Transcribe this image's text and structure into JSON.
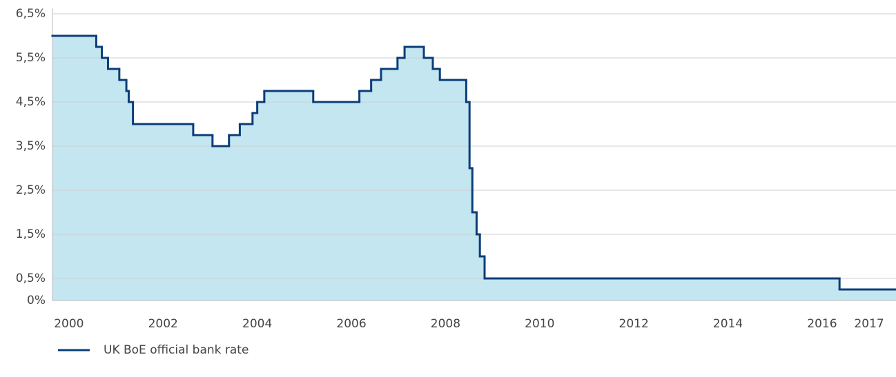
{
  "chart_data": {
    "type": "step-area",
    "x": [
      1999.65,
      2000.58,
      2000.7,
      2000.83,
      2001.07,
      2001.22,
      2001.27,
      2001.36,
      2002.64,
      2003.05,
      2003.4,
      2003.63,
      2003.9,
      2004.0,
      2004.15,
      2005.19,
      2006.17,
      2006.42,
      2006.63,
      2006.98,
      2007.13,
      2007.54,
      2007.73,
      2007.88,
      2008.44,
      2008.51,
      2008.57,
      2008.66,
      2008.73,
      2008.83,
      2016.37
    ],
    "series": [
      {
        "name": "UK BoE official bank rate",
        "color": "#0b3d78",
        "fill": "#c3e6f0",
        "values": [
          6.0,
          5.75,
          5.5,
          5.25,
          5.0,
          4.75,
          4.5,
          4.0,
          3.75,
          3.5,
          3.75,
          4.0,
          4.25,
          4.5,
          4.75,
          4.5,
          4.75,
          5.0,
          5.25,
          5.5,
          5.75,
          5.5,
          5.25,
          5.0,
          4.5,
          3.0,
          2.0,
          1.5,
          1.0,
          0.5,
          0.25
        ]
      }
    ],
    "xlim": [
      1999.65,
      2017.57
    ],
    "xticks": [
      2000,
      2002,
      2004,
      2006,
      2008,
      2010,
      2012,
      2014,
      2016,
      2017
    ],
    "ylim": [
      0,
      6.5
    ],
    "yticks": [
      {
        "value": 0,
        "label": "0%"
      },
      {
        "value": 0.5,
        "label": "0,5%"
      },
      {
        "value": 1.5,
        "label": "1,5%"
      },
      {
        "value": 2.5,
        "label": "2,5%"
      },
      {
        "value": 3.5,
        "label": "3,5%"
      },
      {
        "value": 4.5,
        "label": "4,5%"
      },
      {
        "value": 5.5,
        "label": "5,5%"
      },
      {
        "value": 6.5,
        "label": "6,5%"
      }
    ],
    "grid": true
  }
}
